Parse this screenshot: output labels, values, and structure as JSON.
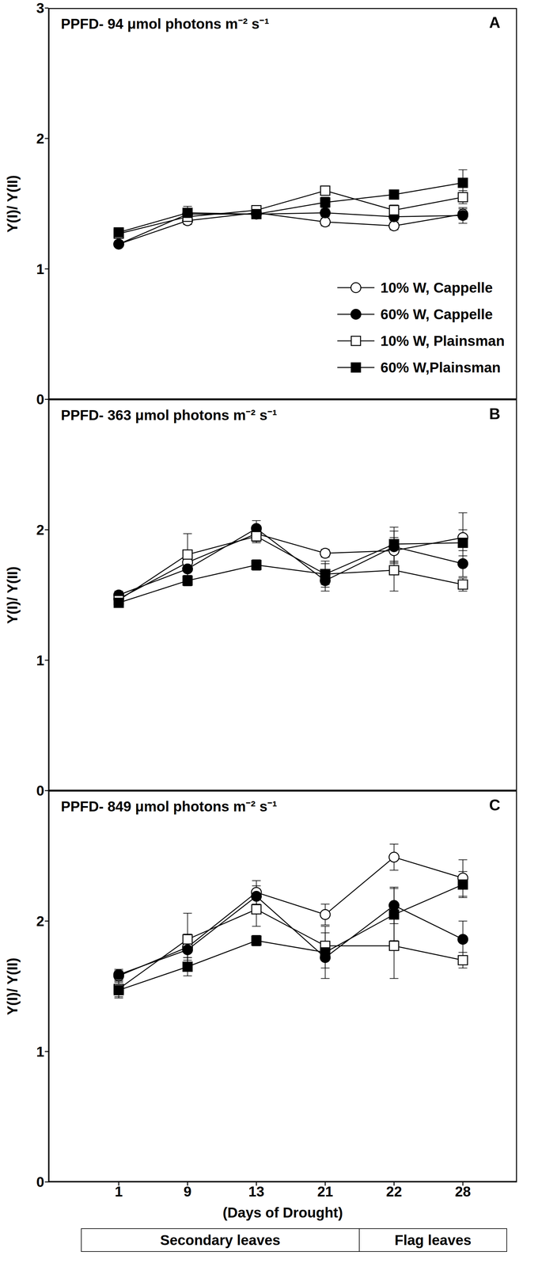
{
  "chart_data": [
    {
      "type": "line",
      "title": "PPFD- 94 μmol photons m⁻² s⁻¹",
      "annotations": [
        "A"
      ],
      "y_label": "Y(I)/ Y(II)",
      "categories": [
        "1",
        "9",
        "13",
        "21",
        "22",
        "28"
      ],
      "ylim": [
        0,
        3
      ],
      "yticks": [
        0,
        1,
        2,
        3
      ],
      "tick_labels": "y",
      "legend": "lower right",
      "series": [
        {
          "name": "10% W, Cappelle",
          "color": "#000000",
          "marker": "open_circle",
          "values": [
            1.19,
            1.37,
            1.43,
            1.36,
            1.33,
            1.42
          ],
          "errors": [
            0.02,
            0.03,
            0.03,
            0.03,
            0.03,
            0.04
          ]
        },
        {
          "name": "60% W, Cappelle",
          "color": "#000000",
          "marker": "circle",
          "values": [
            1.19,
            1.42,
            1.42,
            1.43,
            1.4,
            1.41
          ],
          "errors": [
            0.02,
            0.03,
            0.03,
            0.03,
            0.03,
            0.06
          ]
        },
        {
          "name": "10% W, Plainsman",
          "color": "#000000",
          "marker": "open_square",
          "values": [
            1.27,
            1.4,
            1.45,
            1.6,
            1.45,
            1.55
          ],
          "errors": [
            0.02,
            0.05,
            0.03,
            0.03,
            0.04,
            0.05
          ]
        },
        {
          "name": "60% W,Plainsman",
          "color": "#000000",
          "marker": "square",
          "values": [
            1.28,
            1.43,
            1.42,
            1.51,
            1.57,
            1.66
          ],
          "errors": [
            0.02,
            0.05,
            0.03,
            0.04,
            0.03,
            0.1
          ]
        }
      ]
    },
    {
      "type": "line",
      "title": "PPFD- 363 μmol photons m⁻² s⁻¹",
      "annotations": [
        "B"
      ],
      "y_label": "Y(I)/ Y(II)",
      "categories": [
        "1",
        "9",
        "13",
        "21",
        "22",
        "28"
      ],
      "ylim": [
        0,
        3
      ],
      "yticks": [
        0,
        1,
        2
      ],
      "tick_labels": "y",
      "series": [
        {
          "name": "10% W, Cappelle",
          "color": "#000000",
          "marker": "open_circle",
          "values": [
            1.47,
            1.75,
            1.97,
            1.82,
            1.84,
            1.94
          ],
          "errors": [
            0.03,
            0.06,
            0.06,
            0.03,
            0.1,
            0.19
          ]
        },
        {
          "name": "60% W, Cappelle",
          "color": "#000000",
          "marker": "circle",
          "values": [
            1.5,
            1.7,
            2.01,
            1.61,
            1.87,
            1.74
          ],
          "errors": [
            0.03,
            0.06,
            0.06,
            0.08,
            0.12,
            0.1
          ]
        },
        {
          "name": "10% W, Plainsman",
          "color": "#000000",
          "marker": "open_square",
          "values": [
            1.46,
            1.81,
            1.95,
            1.66,
            1.69,
            1.58
          ],
          "errors": [
            0.03,
            0.16,
            0.05,
            0.1,
            0.16,
            0.05
          ]
        },
        {
          "name": "60% W,Plainsman",
          "color": "#000000",
          "marker": "square",
          "values": [
            1.44,
            1.61,
            1.73,
            1.66,
            1.89,
            1.9
          ],
          "errors": [
            0.03,
            0.04,
            0.04,
            0.08,
            0.13,
            0.1
          ]
        }
      ]
    },
    {
      "type": "line",
      "title": "PPFD- 849 μmol photons m⁻² s⁻¹",
      "annotations": [
        "C"
      ],
      "y_label": "Y(I)/ Y(II)",
      "x_label": "(Days of Drought)",
      "categories": [
        "1",
        "9",
        "13",
        "21",
        "22",
        "28"
      ],
      "ylim": [
        0,
        3
      ],
      "yticks": [
        0,
        1,
        2
      ],
      "leaf_stages": [
        {
          "label": "Secondary leaves",
          "from": "1",
          "to": "21"
        },
        {
          "label": "Flag leaves",
          "from": "22",
          "to": "28"
        }
      ],
      "series": [
        {
          "name": "10% W, Cappelle",
          "color": "#000000",
          "marker": "open_circle",
          "values": [
            1.58,
            1.8,
            2.22,
            2.05,
            2.49,
            2.33
          ],
          "errors": [
            0.04,
            0.1,
            0.09,
            0.08,
            0.1,
            0.14
          ]
        },
        {
          "name": "60% W, Cappelle",
          "color": "#000000",
          "marker": "circle",
          "values": [
            1.59,
            1.78,
            2.19,
            1.72,
            2.12,
            1.86
          ],
          "errors": [
            0.04,
            0.06,
            0.08,
            0.08,
            0.14,
            0.14
          ]
        },
        {
          "name": "10% W, Plainsman",
          "color": "#000000",
          "marker": "open_square",
          "values": [
            1.48,
            1.86,
            2.09,
            1.81,
            1.81,
            1.7
          ],
          "errors": [
            0.06,
            0.2,
            0.13,
            0.1,
            0.25,
            0.06
          ]
        },
        {
          "name": "60% W,Plainsman",
          "color": "#000000",
          "marker": "square",
          "values": [
            1.47,
            1.65,
            1.85,
            1.76,
            2.05,
            2.28
          ],
          "errors": [
            0.06,
            0.07,
            0.04,
            0.2,
            0.2,
            0.1
          ]
        }
      ]
    }
  ]
}
